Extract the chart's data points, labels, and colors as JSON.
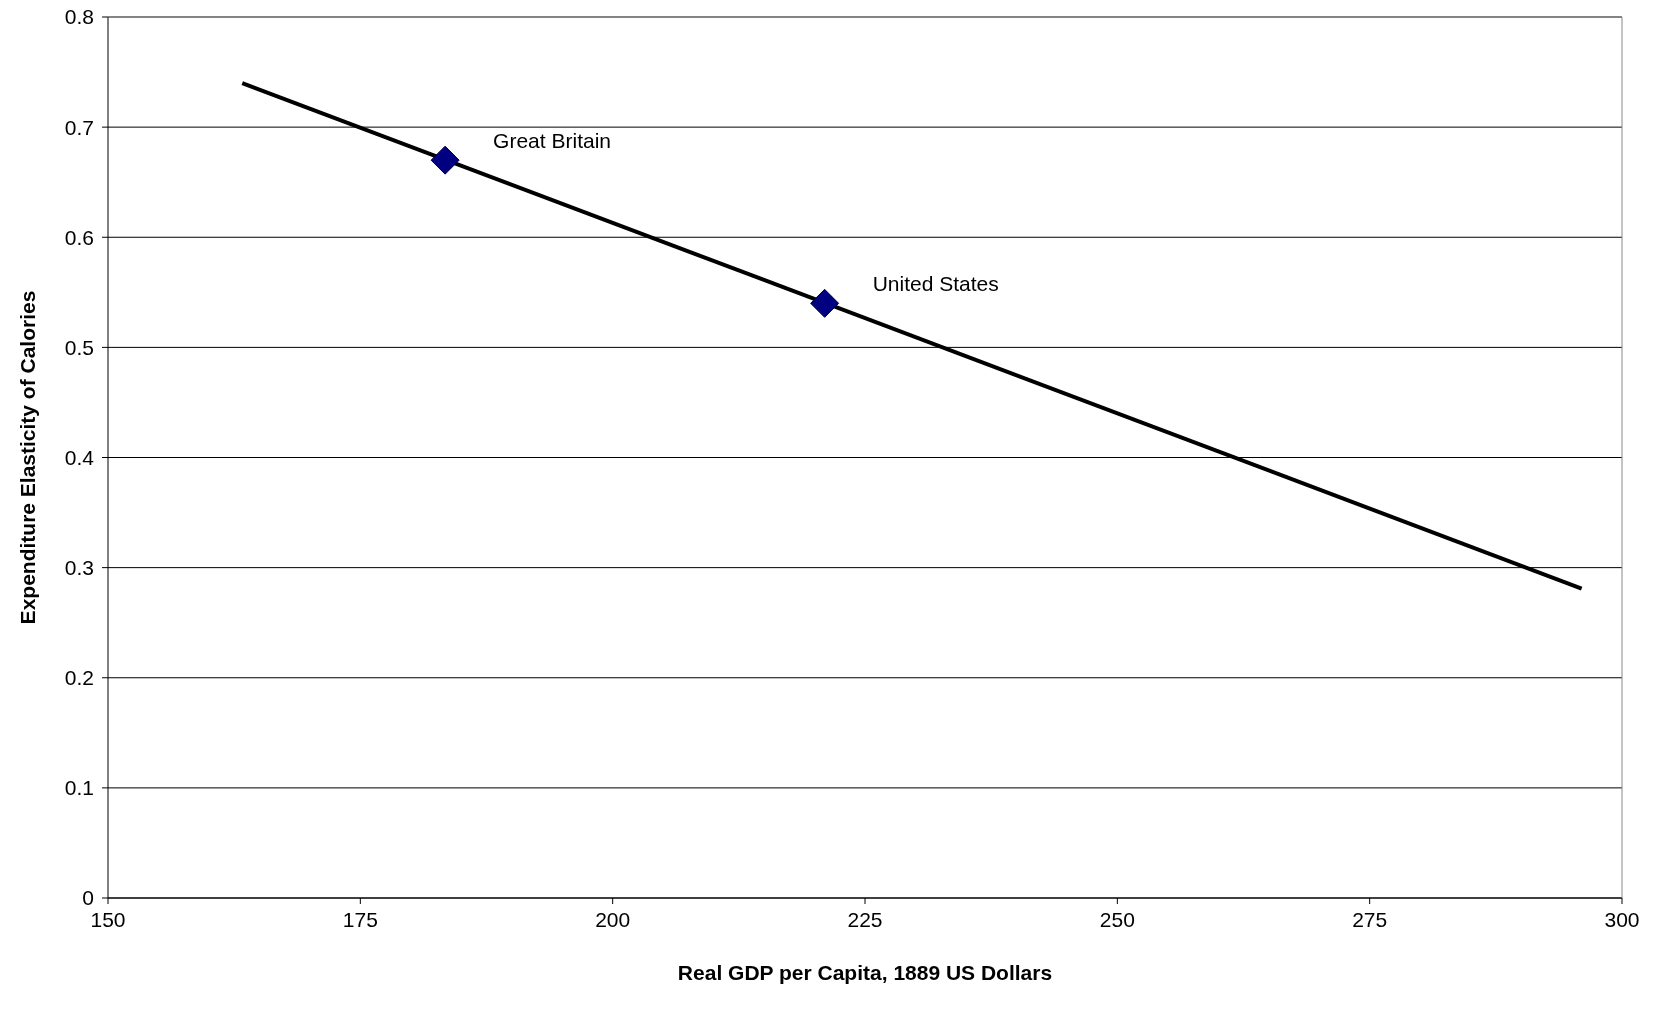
{
  "chart_data": {
    "type": "scatter",
    "xlabel": "Real GDP per Capita, 1889 US Dollars",
    "ylabel": "Expenditure Elasticity of Calories",
    "xlim": [
      150,
      300
    ],
    "xticks": [
      150,
      175,
      200,
      225,
      250,
      275,
      300
    ],
    "ylim": [
      0,
      0.8
    ],
    "yticks": [
      0,
      0.1,
      0.2,
      0.3,
      0.4,
      0.5,
      0.6,
      0.7,
      0.8
    ],
    "grid": "y",
    "legend": false,
    "series": [
      {
        "color": "#000080",
        "marker": "diamond",
        "x": [
          183.4,
          221.0
        ],
        "values": [
          0.67,
          0.54
        ]
      },
      {
        "type": "line",
        "color": "#000000",
        "marker": "none",
        "line_style": "solid",
        "x": [
          163.3,
          296.0
        ],
        "values": [
          0.74,
          0.281
        ]
      }
    ],
    "annotations": [
      {
        "text": "Great Britain",
        "x": 183.4,
        "y": 0.67
      },
      {
        "text": "United States",
        "x": 221.0,
        "y": 0.54
      }
    ]
  }
}
